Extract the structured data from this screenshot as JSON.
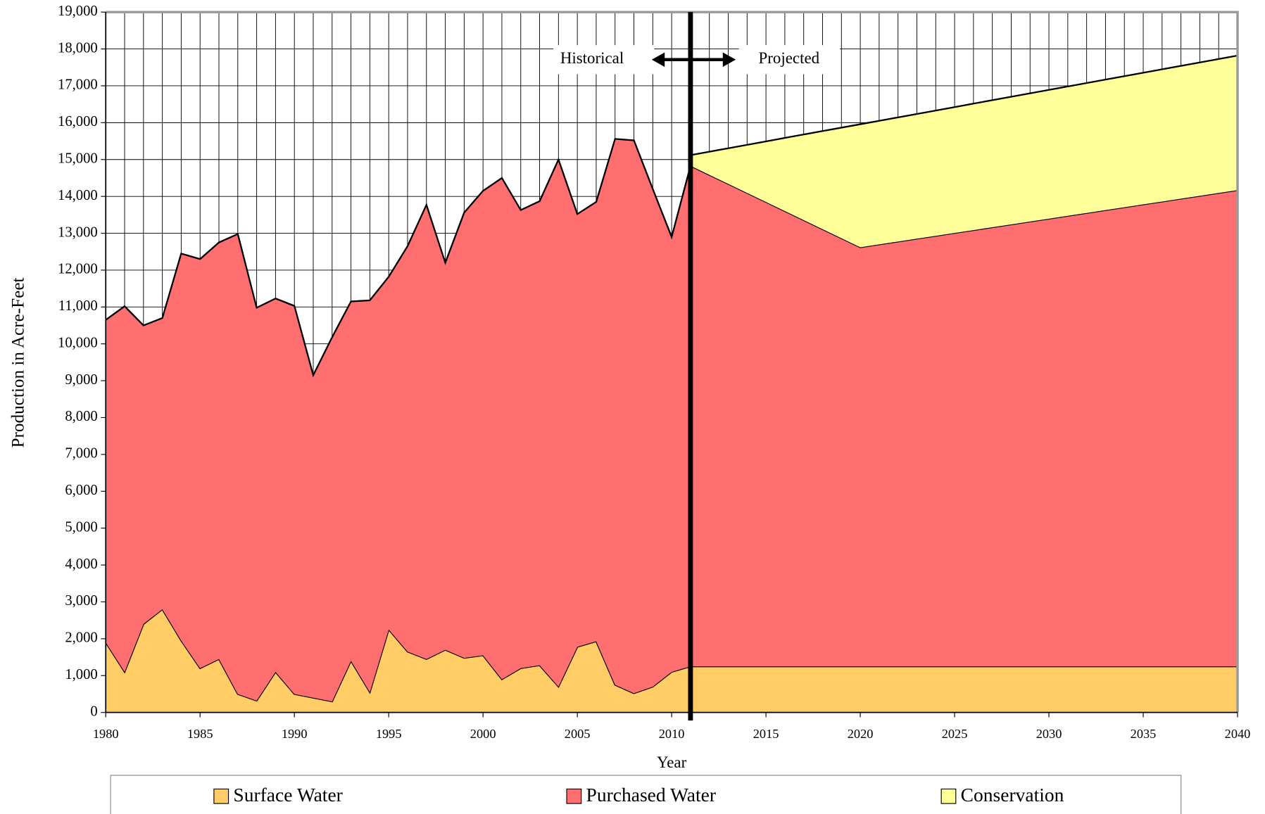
{
  "chart_data": {
    "type": "stacked_area",
    "x_label": "Year",
    "y_label": "Production in Acre-Feet",
    "annotations": [
      "Historical",
      "Projected"
    ],
    "divider_x": 2011,
    "x": [
      1980,
      1981,
      1982,
      1983,
      1984,
      1985,
      1986,
      1987,
      1988,
      1989,
      1990,
      1991,
      1992,
      1993,
      1994,
      1995,
      1996,
      1997,
      1998,
      1999,
      2000,
      2001,
      2002,
      2003,
      2004,
      2005,
      2006,
      2007,
      2008,
      2009,
      2010,
      2011,
      2012,
      2013,
      2014,
      2015,
      2016,
      2017,
      2018,
      2019,
      2020,
      2021,
      2022,
      2023,
      2024,
      2025,
      2026,
      2027,
      2028,
      2029,
      2030,
      2031,
      2032,
      2033,
      2034,
      2035,
      2036,
      2037,
      2038,
      2039,
      2040
    ],
    "series": [
      {
        "name": "Surface Water",
        "color": "#ffcc66",
        "values": [
          1900,
          1100,
          2400,
          2800,
          1950,
          1200,
          1450,
          500,
          320,
          1100,
          500,
          400,
          300,
          1400,
          550,
          2250,
          1650,
          1450,
          1700,
          1480,
          1550,
          900,
          1200,
          1280,
          700,
          1780,
          1930,
          750,
          520,
          700,
          1100,
          1250,
          1250,
          1250,
          1250,
          1250,
          1250,
          1250,
          1250,
          1250,
          1250,
          1250,
          1250,
          1250,
          1250,
          1250,
          1250,
          1250,
          1250,
          1250,
          1250,
          1250,
          1250,
          1250,
          1250,
          1250,
          1250,
          1250,
          1250,
          1250,
          1250
        ]
      },
      {
        "name": "Purchased Water",
        "color": "#ff6f6f",
        "values": [
          8750,
          9920,
          8100,
          7900,
          10500,
          11100,
          11300,
          12480,
          10660,
          10130,
          10530,
          8750,
          9880,
          9750,
          10630,
          9570,
          11000,
          12320,
          10500,
          12080,
          12600,
          13600,
          12430,
          12590,
          14300,
          11740,
          11920,
          14810,
          15000,
          13500,
          11800,
          13580,
          13334,
          13089,
          12843,
          12598,
          12352,
          12107,
          11861,
          11616,
          11370,
          11448,
          11525,
          11603,
          11680,
          11758,
          11835,
          11913,
          11990,
          12068,
          12145,
          12223,
          12300,
          12378,
          12455,
          12533,
          12610,
          12688,
          12765,
          12843,
          12920
        ]
      },
      {
        "name": "Conservation",
        "color": "#ffff99",
        "values": [
          null,
          null,
          null,
          null,
          null,
          null,
          null,
          null,
          null,
          null,
          null,
          null,
          null,
          null,
          null,
          null,
          null,
          null,
          null,
          null,
          null,
          null,
          null,
          null,
          null,
          null,
          null,
          null,
          null,
          null,
          null,
          290,
          629,
          967,
          1306,
          1644,
          1984,
          2322,
          2661,
          2999,
          3338,
          3353,
          3369,
          3384,
          3400,
          3415,
          3432,
          3447,
          3463,
          3478,
          3494,
          3509,
          3525,
          3540,
          3556,
          3571,
          3588,
          3603,
          3619,
          3634,
          3650
        ]
      }
    ],
    "xlim": [
      1980,
      2040
    ],
    "xticks": [
      1980,
      1985,
      1990,
      1995,
      2000,
      2005,
      2010,
      2015,
      2020,
      2025,
      2030,
      2035,
      2040
    ],
    "ylim": [
      0,
      19000
    ],
    "yticks": [
      0,
      {
        "value": 1000,
        "label": "1,000"
      },
      {
        "value": 2000,
        "label": "2,000"
      },
      {
        "value": 3000,
        "label": "3,000"
      },
      {
        "value": 4000,
        "label": "4,000"
      },
      {
        "value": 5000,
        "label": "5,000"
      },
      {
        "value": 6000,
        "label": "6,000"
      },
      {
        "value": 7000,
        "label": "7,000"
      },
      {
        "value": 8000,
        "label": "8,000"
      },
      {
        "value": 9000,
        "label": "9,000"
      },
      {
        "value": 10000,
        "label": "10,000"
      },
      {
        "value": 11000,
        "label": "11,000"
      },
      {
        "value": 12000,
        "label": "12,000"
      },
      {
        "value": 13000,
        "label": "13,000"
      },
      {
        "value": 14000,
        "label": "14,000"
      },
      {
        "value": 15000,
        "label": "15,000"
      },
      {
        "value": 16000,
        "label": "16,000"
      },
      {
        "value": 17000,
        "label": "17,000"
      },
      {
        "value": 18000,
        "label": "18,000"
      },
      {
        "value": 19000,
        "label": "19,000"
      }
    ],
    "grid": true,
    "legend": "bottom"
  }
}
